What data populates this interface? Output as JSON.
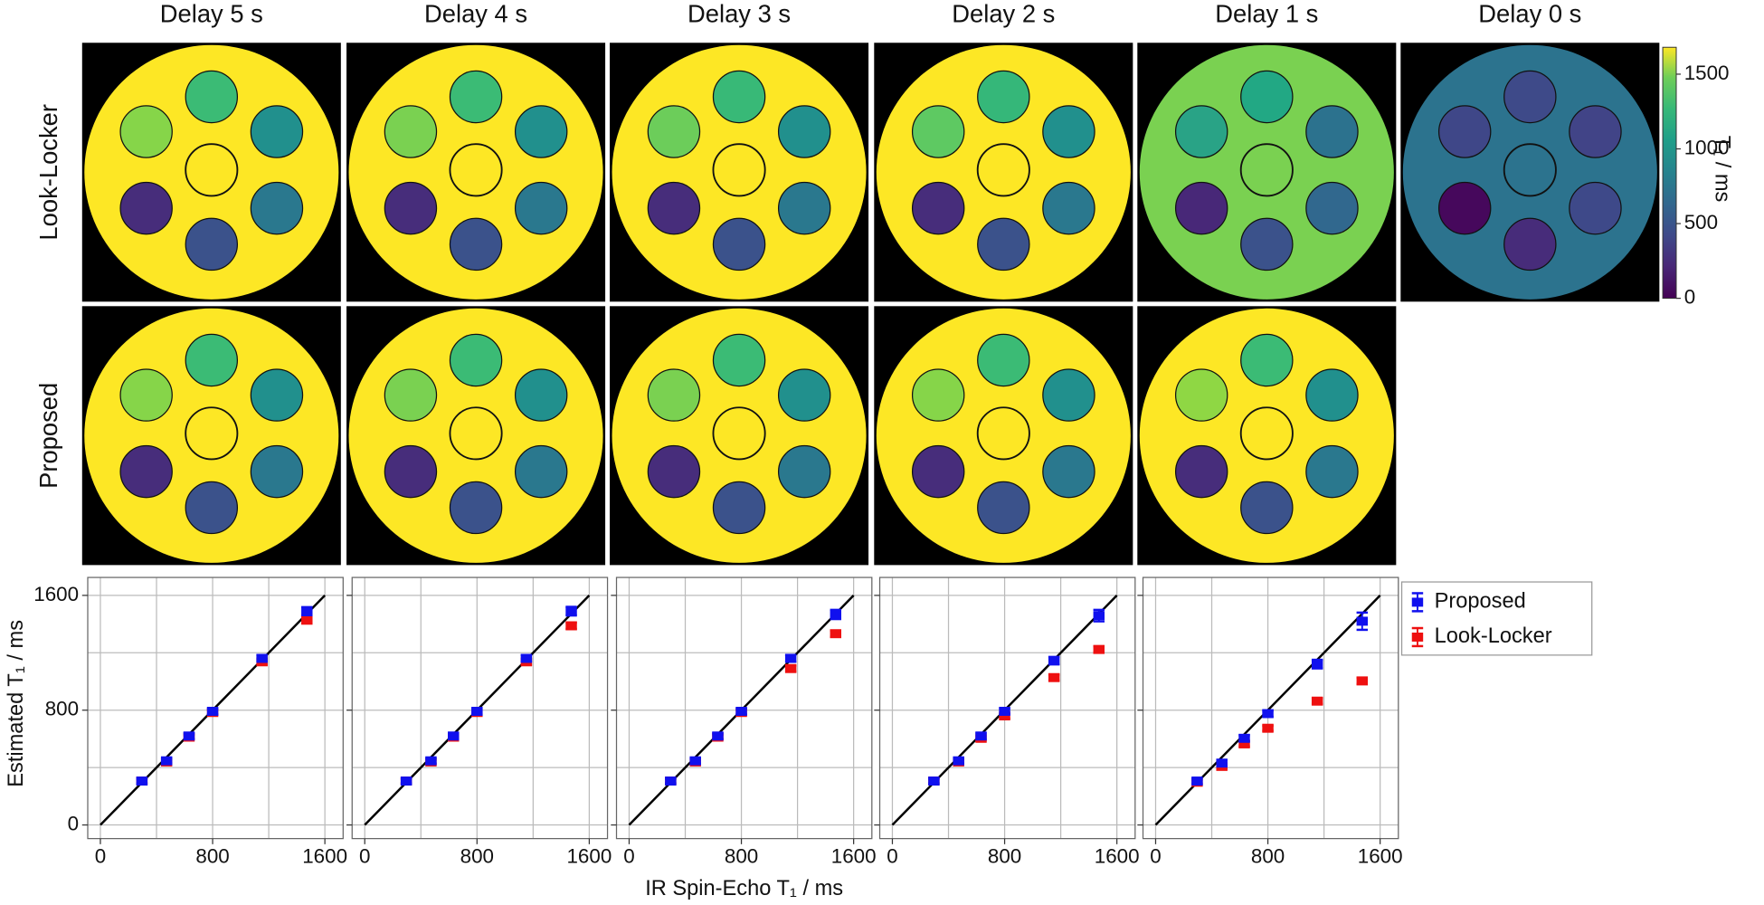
{
  "column_titles": [
    "Delay 5 s",
    "Delay 4 s",
    "Delay 3 s",
    "Delay 2 s",
    "Delay 1 s",
    "Delay 0 s"
  ],
  "row_labels": [
    "Look-Locker",
    "Proposed"
  ],
  "colorbar": {
    "label": "T₁ / ms",
    "lim": [
      0,
      1680
    ],
    "ticks": [
      0,
      500,
      1000,
      1500
    ]
  },
  "chart_data": [
    {
      "type": "scatter",
      "ylabel": "Estimated T₁ / ms",
      "x": [
        296,
        472,
        632,
        800,
        1152,
        1472
      ],
      "series": [
        {
          "name": "Proposed",
          "color": "#1010ee",
          "values": [
            306,
            447,
            620,
            792,
            1161,
            1490
          ],
          "errors": [
            18,
            18,
            20,
            20,
            22,
            28
          ]
        },
        {
          "name": "Look-Locker",
          "color": "#ee1010",
          "values": [
            306,
            439,
            612,
            784,
            1137,
            1427
          ],
          "errors": [
            15,
            15,
            15,
            18,
            20,
            22
          ]
        }
      ],
      "xlim": [
        -90,
        1730
      ],
      "ylim": [
        -95,
        1725
      ],
      "xticks": [
        0,
        800,
        1600
      ],
      "yticks": [
        0,
        800,
        1600
      ],
      "minor_ticks": [
        400,
        1200
      ],
      "grid": true
    },
    {
      "type": "scatter",
      "x": [
        296,
        472,
        632,
        800,
        1152,
        1472
      ],
      "series": [
        {
          "name": "Proposed",
          "color": "#1010ee",
          "values": [
            306,
            447,
            620,
            792,
            1161,
            1490
          ],
          "errors": [
            18,
            18,
            20,
            20,
            22,
            30
          ]
        },
        {
          "name": "Look-Locker",
          "color": "#ee1010",
          "values": [
            306,
            439,
            612,
            784,
            1137,
            1388
          ],
          "errors": [
            15,
            15,
            15,
            18,
            20,
            22
          ]
        }
      ],
      "xlim": [
        -90,
        1730
      ],
      "ylim": [
        -95,
        1725
      ],
      "xticks": [
        0,
        800,
        1600
      ],
      "yticks": [
        0,
        800,
        1600
      ],
      "minor_ticks": [
        400,
        1200
      ],
      "grid": true
    },
    {
      "type": "scatter",
      "xlabel": "IR Spin-Echo T₁ / ms",
      "x": [
        296,
        472,
        632,
        800,
        1152,
        1472
      ],
      "series": [
        {
          "name": "Proposed",
          "color": "#1010ee",
          "values": [
            306,
            447,
            620,
            792,
            1161,
            1467
          ],
          "errors": [
            18,
            18,
            20,
            20,
            24,
            32
          ]
        },
        {
          "name": "Look-Locker",
          "color": "#ee1010",
          "values": [
            306,
            439,
            612,
            784,
            1090,
            1333
          ],
          "errors": [
            15,
            15,
            15,
            18,
            20,
            22
          ]
        }
      ],
      "xlim": [
        -90,
        1730
      ],
      "ylim": [
        -95,
        1725
      ],
      "xticks": [
        0,
        800,
        1600
      ],
      "yticks": [
        0,
        800,
        1600
      ],
      "minor_ticks": [
        400,
        1200
      ],
      "grid": true
    },
    {
      "type": "scatter",
      "x": [
        296,
        472,
        632,
        800,
        1152,
        1472
      ],
      "series": [
        {
          "name": "Proposed",
          "color": "#1010ee",
          "values": [
            306,
            447,
            620,
            792,
            1145,
            1459
          ],
          "errors": [
            18,
            18,
            20,
            20,
            26,
            40
          ]
        },
        {
          "name": "Look-Locker",
          "color": "#ee1010",
          "values": [
            306,
            439,
            604,
            760,
            1027,
            1223
          ],
          "errors": [
            15,
            15,
            15,
            18,
            20,
            22
          ]
        }
      ],
      "xlim": [
        -90,
        1730
      ],
      "ylim": [
        -95,
        1725
      ],
      "xticks": [
        0,
        800,
        1600
      ],
      "yticks": [
        0,
        800,
        1600
      ],
      "minor_ticks": [
        400,
        1200
      ],
      "grid": true
    },
    {
      "type": "scatter",
      "legend": "outside right",
      "x": [
        296,
        472,
        632,
        800,
        1152,
        1472
      ],
      "series": [
        {
          "name": "Proposed",
          "color": "#1010ee",
          "values": [
            306,
            431,
            604,
            776,
            1121,
            1420
          ],
          "errors": [
            18,
            20,
            22,
            22,
            30,
            60
          ]
        },
        {
          "name": "Look-Locker",
          "color": "#ee1010",
          "values": [
            298,
            408,
            565,
            674,
            863,
            1004
          ],
          "errors": [
            15,
            15,
            18,
            18,
            20,
            22
          ]
        }
      ],
      "xlim": [
        -90,
        1730
      ],
      "ylim": [
        -95,
        1725
      ],
      "xticks": [
        0,
        800,
        1600
      ],
      "yticks": [
        0,
        800,
        1600
      ],
      "minor_ticks": [
        400,
        1200
      ],
      "grid": true
    }
  ]
}
